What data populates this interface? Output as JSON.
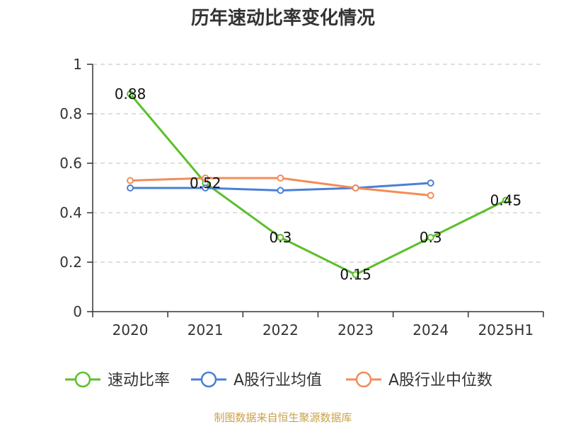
{
  "chart_data": {
    "type": "line",
    "title": "历年速动比率变化情况",
    "categories": [
      "2020",
      "2021",
      "2022",
      "2023",
      "2024",
      "2025H1"
    ],
    "ylim": [
      0,
      1
    ],
    "yticks": [
      "0",
      "0.2",
      "0.4",
      "0.6",
      "0.8",
      "1"
    ],
    "ytick_values": [
      0,
      0.2,
      0.4,
      0.6,
      0.8,
      1
    ],
    "grid": true,
    "legend_position": "bottom",
    "series": [
      {
        "name": "速动比率",
        "color": "#5cbf2a",
        "values": [
          0.88,
          0.52,
          0.3,
          0.15,
          0.3,
          0.45
        ],
        "labels": [
          "0.88",
          "0.52",
          "0.3",
          "0.15",
          "0.3",
          "0.45"
        ]
      },
      {
        "name": "A股行业均值",
        "color": "#4a7fd6",
        "values": [
          0.5,
          0.5,
          0.49,
          0.5,
          0.52,
          null
        ]
      },
      {
        "name": "A股行业中位数",
        "color": "#f28c5a",
        "values": [
          0.53,
          0.54,
          0.54,
          0.5,
          0.47,
          null
        ]
      }
    ],
    "source": "制图数据来自恒生聚源数据库"
  }
}
